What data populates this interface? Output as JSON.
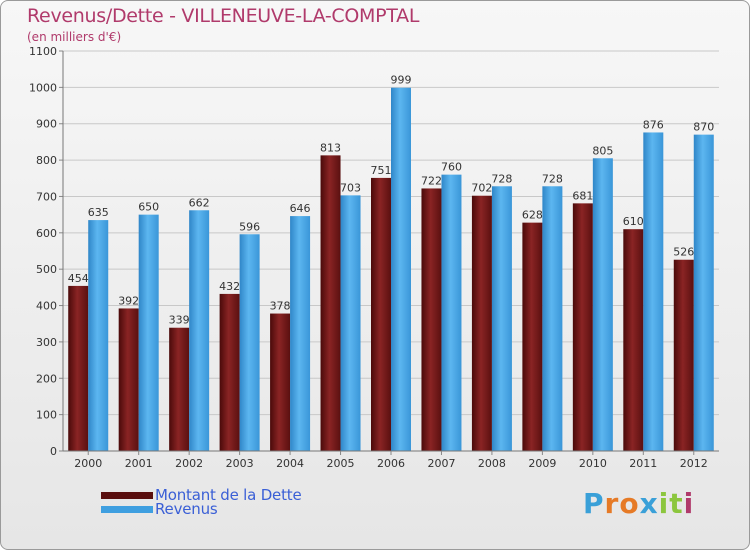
{
  "title": "Revenus/Dette - VILLENEUVE-LA-COMPTAL",
  "subtitle": "(en milliers d'€)",
  "brand": {
    "letters": [
      "P",
      "r",
      "o",
      "x",
      "i",
      "t",
      "i"
    ],
    "colors": [
      "#3aa0d8",
      "#e67a26",
      "#e67a26",
      "#3aa0d8",
      "#8cc63e",
      "#8cc63e",
      "#b03a6b"
    ]
  },
  "colors": {
    "dette": "#7a1b1b",
    "revenus": "#3f9fe0",
    "title": "#b03a6b",
    "legend_text": "#3a5fd6"
  },
  "chart_data": {
    "type": "bar",
    "categories": [
      "2000",
      "2001",
      "2002",
      "2003",
      "2004",
      "2005",
      "2006",
      "2007",
      "2008",
      "2009",
      "2010",
      "2011",
      "2012"
    ],
    "series": [
      {
        "name": "Montant de la Dette",
        "values": [
          454,
          392,
          339,
          432,
          378,
          813,
          751,
          722,
          702,
          628,
          681,
          610,
          526
        ]
      },
      {
        "name": "Revenus",
        "values": [
          635,
          650,
          662,
          596,
          646,
          703,
          999,
          760,
          728,
          728,
          805,
          876,
          870
        ]
      }
    ],
    "yticks": [
      0,
      100,
      200,
      300,
      400,
      500,
      600,
      700,
      800,
      900,
      1000,
      1100
    ],
    "ylim": [
      0,
      1100
    ],
    "grid": true,
    "legend": "bottom-left"
  }
}
